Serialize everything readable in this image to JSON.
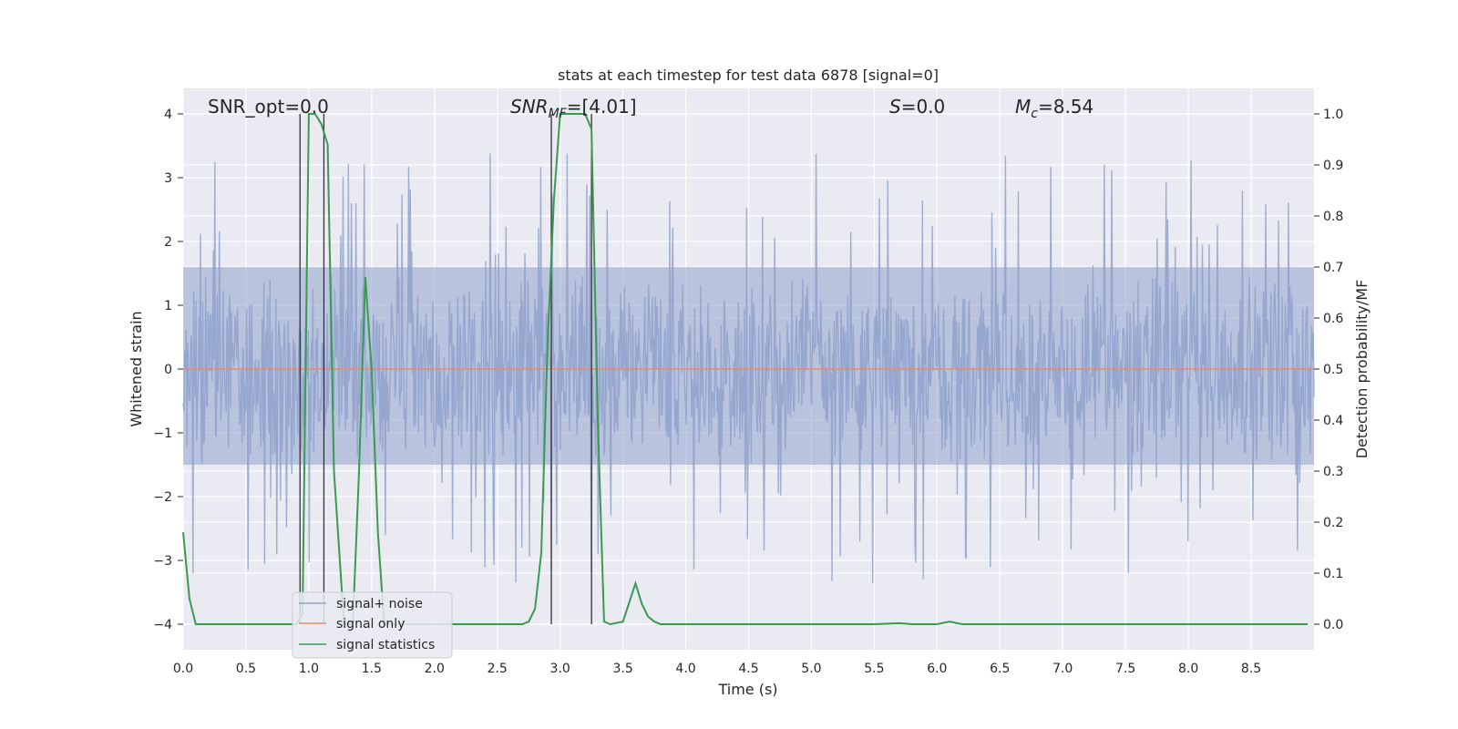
{
  "chart_data": {
    "type": "line",
    "title": "stats at each timestep for test data 6878 [signal=0]",
    "xlabel": "Time (s)",
    "ylabel_left": "Whitened strain",
    "ylabel_right": "Detection probability/MF",
    "xlim": [
      0,
      9.0
    ],
    "ylim_left": [
      -4.4,
      4.4
    ],
    "ylim_right": [
      -0.05,
      1.05
    ],
    "x_ticks": [
      "0.0",
      "0.5",
      "1.0",
      "1.5",
      "2.0",
      "2.5",
      "3.0",
      "3.5",
      "4.0",
      "4.5",
      "5.0",
      "5.5",
      "6.0",
      "6.5",
      "7.0",
      "7.5",
      "8.0",
      "8.5"
    ],
    "y_ticks_left": [
      4,
      3,
      2,
      1,
      0,
      -1,
      -2,
      -3,
      -4
    ],
    "y_ticks_left_labels": [
      "4",
      "3",
      "2",
      "1",
      "0",
      "−1",
      "−2",
      "−3",
      "−4"
    ],
    "y_ticks_right": [
      1.0,
      0.9,
      0.8,
      0.7,
      0.6,
      0.5,
      0.4,
      0.3,
      0.2,
      0.1,
      0.0
    ],
    "y_ticks_right_labels": [
      "1.0",
      "0.9",
      "0.8",
      "0.7",
      "0.6",
      "0.5",
      "0.4",
      "0.3",
      "0.2",
      "0.1",
      "0.0"
    ],
    "grid": true,
    "legend_position": "lower-left",
    "annotations": {
      "snr_opt": "SNR_opt=0.0",
      "snr_mf_main": "SNR",
      "snr_mf_sub": "MF",
      "snr_mf_value": "=[4.01]",
      "s_main": "S",
      "s_value": "=0.0",
      "mc_main": "M",
      "mc_sub": "c",
      "mc_value": "=8.54"
    },
    "vertical_markers_s": [
      0.93,
      1.12,
      2.93,
      3.25
    ],
    "series": [
      {
        "name": "signal+ noise",
        "color": "#8fa3cc",
        "axis": "left",
        "note_values": "dense whitened noise, approx. amplitude band ±1.5 with spikes to about ±3.5",
        "noise_band": [
          -1.5,
          1.6
        ],
        "spike_range": [
          -3.6,
          4.0
        ]
      },
      {
        "name": "signal only",
        "color": "#e8896f",
        "axis": "left",
        "x": [
          0,
          9.0
        ],
        "y": [
          0,
          0
        ]
      },
      {
        "name": "signal statistics",
        "color": "#3a9a52",
        "axis": "right",
        "x": [
          0.0,
          0.05,
          0.1,
          0.2,
          0.9,
          0.95,
          1.0,
          1.05,
          1.1,
          1.15,
          1.2,
          1.28,
          1.35,
          1.4,
          1.45,
          1.5,
          1.55,
          1.6,
          1.8,
          2.0,
          2.5,
          2.7,
          2.75,
          2.8,
          2.85,
          2.9,
          2.95,
          3.0,
          3.1,
          3.2,
          3.25,
          3.3,
          3.35,
          3.4,
          3.5,
          3.6,
          3.65,
          3.7,
          3.75,
          3.8,
          4.0,
          5.0,
          5.5,
          5.7,
          5.8,
          6.0,
          6.1,
          6.2,
          7.0,
          8.0,
          8.95
        ],
        "y": [
          0.18,
          0.05,
          0.0,
          0.0,
          0.0,
          0.02,
          1.0,
          1.0,
          0.98,
          0.94,
          0.3,
          0.0,
          0.0,
          0.3,
          0.68,
          0.5,
          0.18,
          0.0,
          0.0,
          0.0,
          0.0,
          0.0,
          0.005,
          0.03,
          0.14,
          0.55,
          0.83,
          1.0,
          1.0,
          1.0,
          0.97,
          0.4,
          0.005,
          0.0,
          0.005,
          0.08,
          0.04,
          0.015,
          0.005,
          0.0,
          0.0,
          0.0,
          0.0,
          0.002,
          0.0,
          0.0,
          0.005,
          0.0,
          0.0,
          0.0,
          0.0
        ]
      }
    ]
  },
  "colors": {
    "plot_background": "#eaeaf2",
    "grid": "#ffffff",
    "marker_line": "#333333"
  }
}
